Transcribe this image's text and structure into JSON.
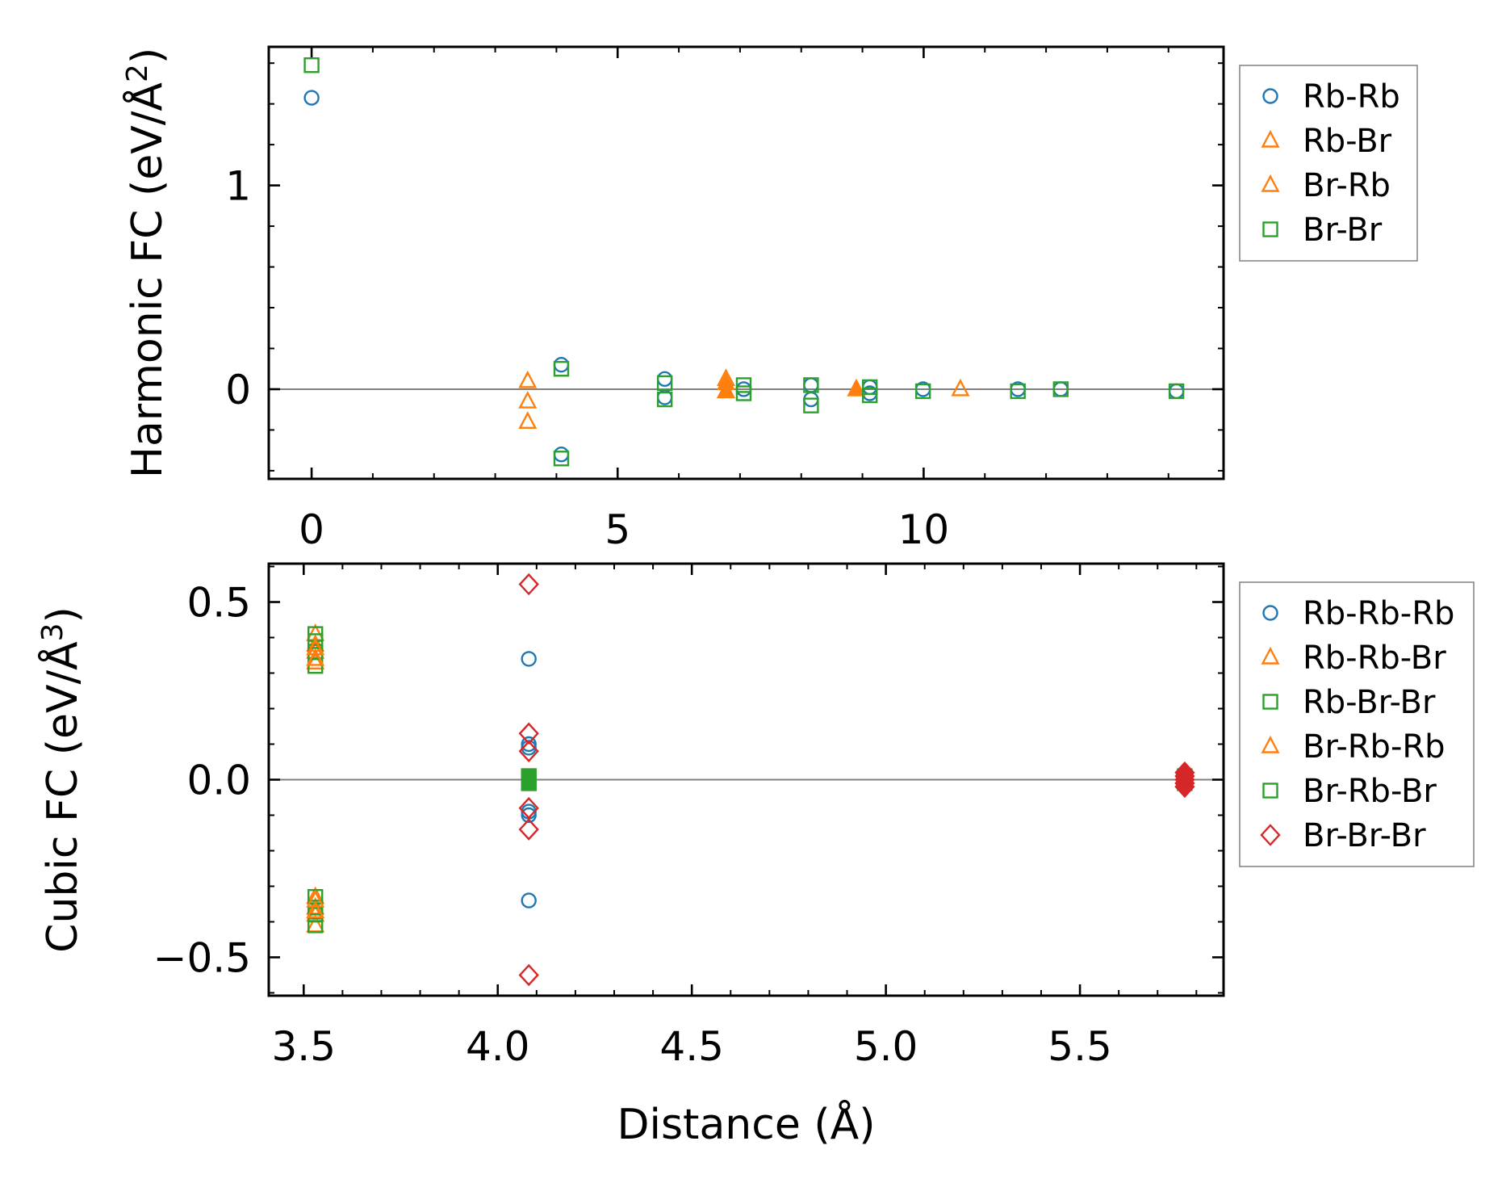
{
  "colors": {
    "blue": "#1f77b4",
    "orange": "#ff7f0e",
    "green": "#2ca02c",
    "red": "#d62728",
    "zero_line": "#808080",
    "legend_border": "#808080"
  },
  "chart_data": [
    {
      "type": "scatter",
      "panel": "top",
      "title": "",
      "xlabel": "",
      "ylabel_prefix": "Harmonic FC (eV/Å",
      "ylabel_sup": "2",
      "ylabel_suffix": ")",
      "xlim": [
        -0.7,
        14.9
      ],
      "ylim": [
        -0.44,
        1.68
      ],
      "xticks": [
        0,
        5,
        10
      ],
      "xtick_labels": [
        "0",
        "5",
        "10"
      ],
      "yticks": [
        0,
        1
      ],
      "ytick_labels": [
        "0",
        "1"
      ],
      "x_minor_step": 1,
      "y_minor_step": 0.2,
      "zero_line": true,
      "legend_position": "outside-right-top",
      "series": [
        {
          "name": "Rb-Rb",
          "marker": "circle",
          "color": "#1f77b4",
          "filled": false,
          "x": [
            0.0,
            4.08,
            4.08,
            5.77,
            5.77,
            7.06,
            8.16,
            8.16,
            9.12,
            9.12,
            9.99,
            11.54,
            12.24,
            14.13
          ],
          "y": [
            1.43,
            0.12,
            -0.32,
            0.05,
            -0.04,
            0.0,
            0.02,
            -0.05,
            0.01,
            -0.02,
            0.0,
            0.0,
            0.0,
            -0.01
          ]
        },
        {
          "name": "Rb-Br",
          "marker": "triangle",
          "color": "#ff7f0e",
          "filled": false,
          "x": [
            3.53,
            3.53,
            3.53,
            6.77,
            6.77,
            8.9,
            10.6
          ],
          "y": [
            0.04,
            -0.06,
            -0.16,
            0.05,
            -0.01,
            0.0,
            0.0
          ]
        },
        {
          "name": "Br-Rb",
          "marker": "triangle",
          "color": "#ff7f0e",
          "filled": true,
          "x": [
            6.77,
            6.77,
            8.9
          ],
          "y": [
            0.03,
            -0.01,
            0.0
          ]
        },
        {
          "name": "Br-Br",
          "marker": "square",
          "color": "#2ca02c",
          "filled": false,
          "x": [
            0.0,
            4.08,
            4.08,
            5.77,
            5.77,
            7.06,
            7.06,
            8.16,
            8.16,
            9.12,
            9.12,
            9.99,
            11.54,
            12.24,
            14.13
          ],
          "y": [
            1.59,
            0.1,
            -0.34,
            0.03,
            -0.05,
            0.02,
            -0.02,
            0.02,
            -0.08,
            0.01,
            -0.03,
            -0.01,
            -0.01,
            0.0,
            -0.01
          ]
        }
      ],
      "legend": [
        "Rb-Rb",
        "Rb-Br",
        "Br-Rb",
        "Br-Br"
      ]
    },
    {
      "type": "scatter",
      "panel": "bottom",
      "title": "",
      "xlabel": "Distance (Å)",
      "ylabel_prefix": "Cubic FC (eV/Å",
      "ylabel_sup": "3",
      "ylabel_suffix": ")",
      "xlim": [
        3.41,
        5.87
      ],
      "ylim": [
        -0.608,
        0.608
      ],
      "xticks": [
        3.5,
        4.0,
        4.5,
        5.0,
        5.5
      ],
      "xtick_labels": [
        "3.5",
        "4.0",
        "4.5",
        "5.0",
        "5.5"
      ],
      "yticks": [
        -0.5,
        0.0,
        0.5
      ],
      "ytick_labels": [
        "−0.5",
        "0.0",
        "0.5"
      ],
      "x_minor_step": 0.1,
      "y_minor_step": 0.1,
      "zero_line": true,
      "legend_position": "outside-right-top",
      "series": [
        {
          "name": "Rb-Rb-Rb",
          "marker": "circle",
          "color": "#1f77b4",
          "filled": false,
          "x": [
            4.08,
            4.08,
            4.08,
            4.08,
            4.08,
            4.08,
            4.08
          ],
          "y": [
            0.34,
            0.1,
            0.09,
            -0.09,
            -0.1,
            -0.34,
            0.0
          ]
        },
        {
          "name": "Rb-Rb-Br",
          "marker": "triangle",
          "color": "#ff7f0e",
          "filled": false,
          "x": [
            3.53,
            3.53,
            3.53,
            3.53,
            3.53,
            3.53,
            3.53,
            3.53
          ],
          "y": [
            0.41,
            0.38,
            0.36,
            0.33,
            -0.33,
            -0.36,
            -0.38,
            -0.41
          ]
        },
        {
          "name": "Rb-Br-Br",
          "marker": "square",
          "color": "#2ca02c",
          "filled": false,
          "x": [
            3.53,
            3.53,
            3.53,
            3.53,
            3.53,
            3.53,
            3.53,
            3.53,
            4.08,
            4.08
          ],
          "y": [
            0.41,
            0.39,
            0.36,
            0.32,
            -0.33,
            -0.36,
            -0.38,
            -0.41,
            0.01,
            -0.01
          ]
        },
        {
          "name": "Br-Rb-Rb",
          "marker": "triangle",
          "color": "#ff7f0e",
          "filled": false,
          "x": [
            3.53,
            3.53,
            3.53,
            3.53
          ],
          "y": [
            0.37,
            0.34,
            -0.34,
            -0.37
          ]
        },
        {
          "name": "Br-Rb-Br",
          "marker": "square",
          "color": "#2ca02c",
          "filled": true,
          "x": [
            4.08,
            4.08,
            5.77,
            5.77
          ],
          "y": [
            0.01,
            -0.01,
            0.01,
            -0.01
          ]
        },
        {
          "name": "Br-Br-Br",
          "marker": "diamond",
          "color": "#d62728",
          "filled": false,
          "x": [
            4.08,
            4.08,
            4.08,
            4.08,
            4.08,
            4.08
          ],
          "y": [
            0.55,
            0.13,
            0.08,
            -0.08,
            -0.14,
            -0.55
          ]
        },
        {
          "name": "Br-Br-Br (filled)",
          "marker": "diamond",
          "color": "#d62728",
          "filled": true,
          "in_legend": false,
          "x": [
            5.77,
            5.77,
            5.77,
            5.77,
            5.77
          ],
          "y": [
            0.02,
            0.01,
            0.0,
            -0.01,
            -0.02
          ]
        }
      ],
      "legend": [
        "Rb-Rb-Rb",
        "Rb-Rb-Br",
        "Rb-Br-Br",
        "Br-Rb-Rb",
        "Br-Rb-Br",
        "Br-Br-Br"
      ]
    }
  ]
}
